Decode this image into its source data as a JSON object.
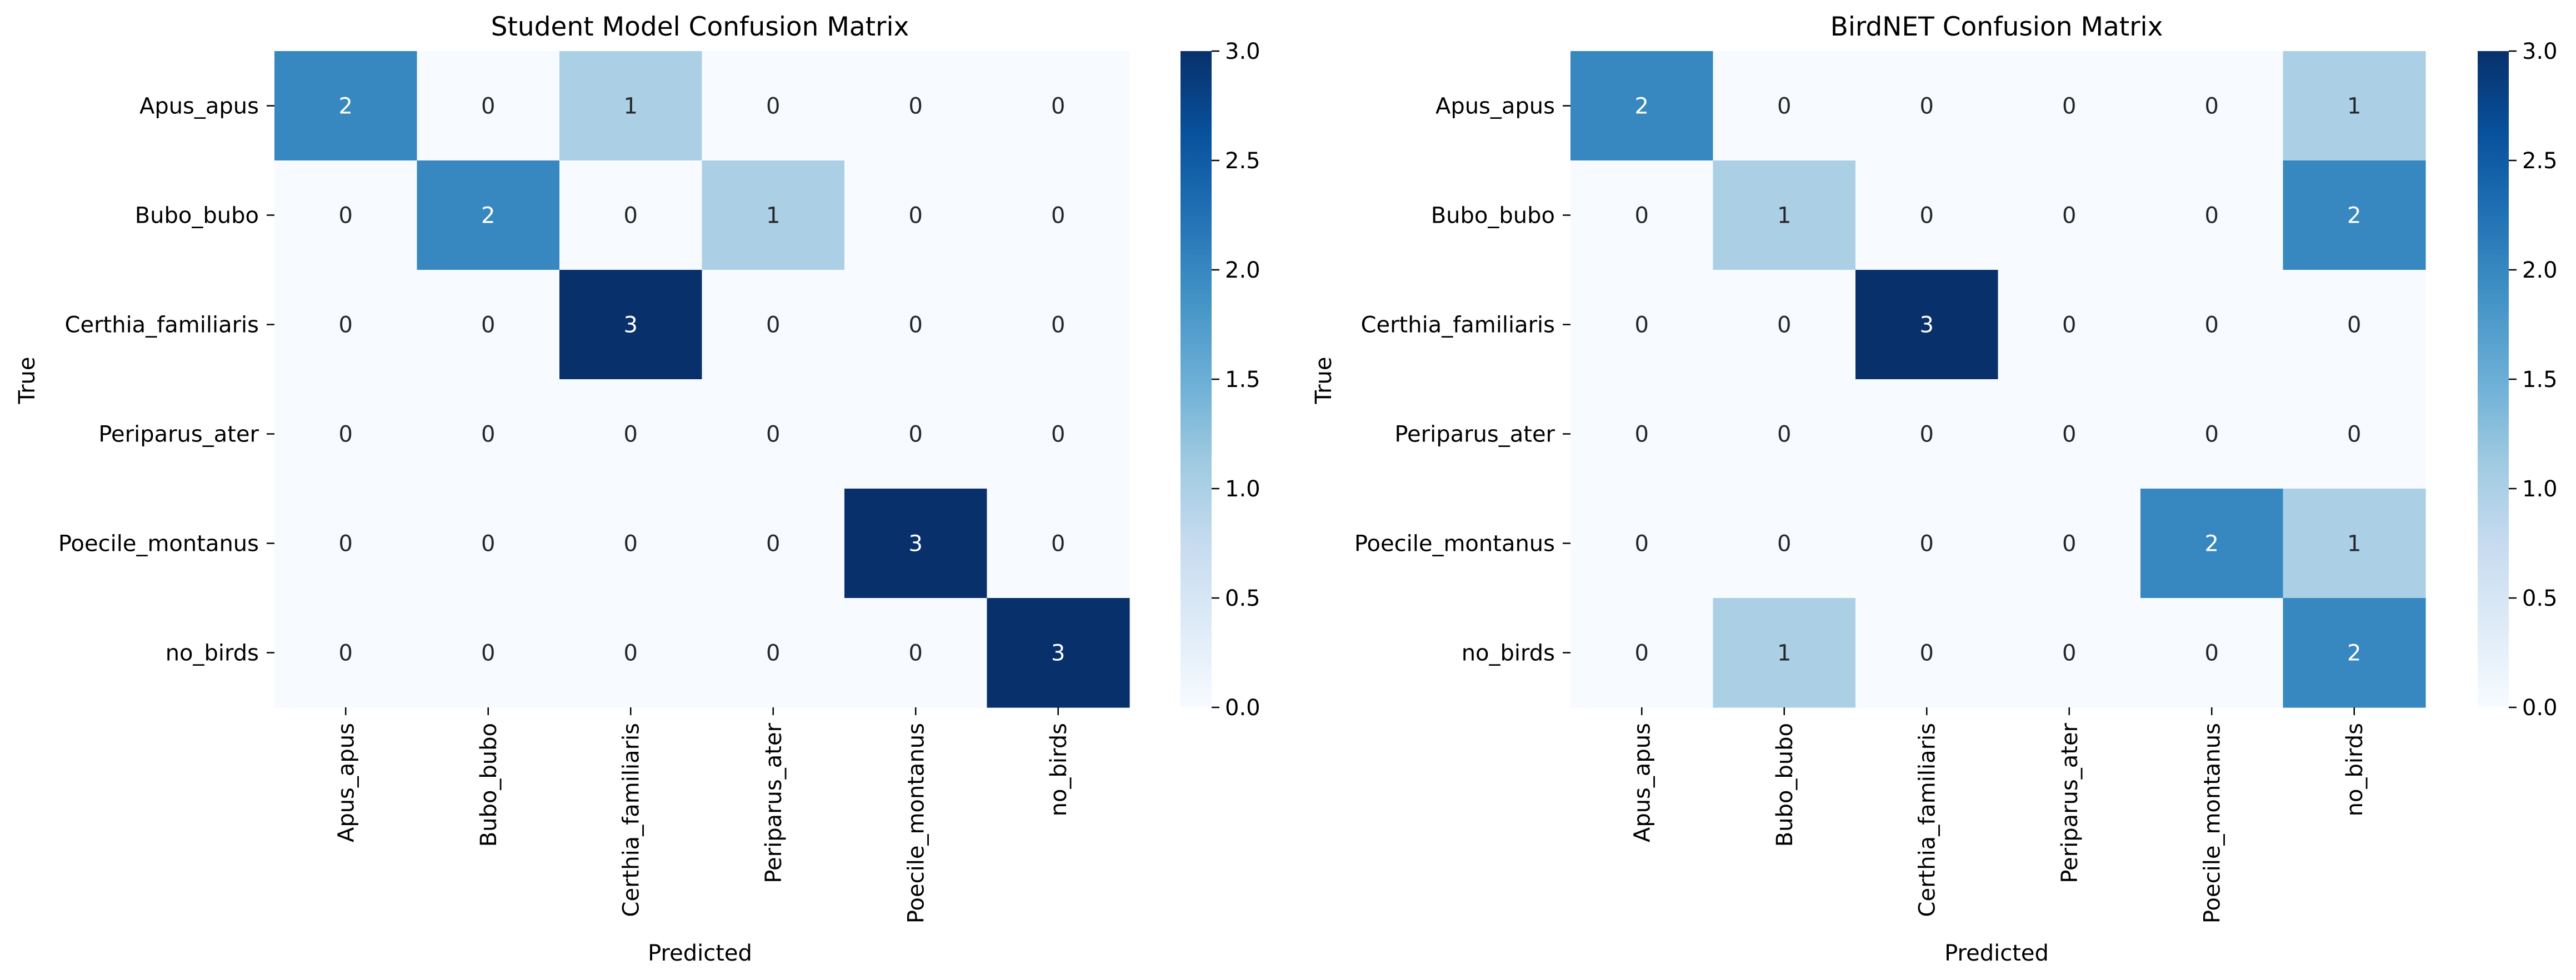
{
  "chart_data": [
    {
      "type": "heatmap",
      "title": "Student Model Confusion Matrix",
      "xlabel": "Predicted",
      "ylabel": "True",
      "x_categories": [
        "Apus_apus",
        "Bubo_bubo",
        "Certhia_familiaris",
        "Periparus_ater",
        "Poecile_montanus",
        "no_birds"
      ],
      "y_categories": [
        "Apus_apus",
        "Bubo_bubo",
        "Certhia_familiaris",
        "Periparus_ater",
        "Poecile_montanus",
        "no_birds"
      ],
      "values": [
        [
          2,
          0,
          1,
          0,
          0,
          0
        ],
        [
          0,
          2,
          0,
          1,
          0,
          0
        ],
        [
          0,
          0,
          3,
          0,
          0,
          0
        ],
        [
          0,
          0,
          0,
          0,
          0,
          0
        ],
        [
          0,
          0,
          0,
          0,
          3,
          0
        ],
        [
          0,
          0,
          0,
          0,
          0,
          3
        ]
      ],
      "colorbar": {
        "range": [
          0,
          3
        ],
        "ticks": [
          "0.0",
          "0.5",
          "1.0",
          "1.5",
          "2.0",
          "2.5",
          "3.0"
        ],
        "colormap": "Blues"
      }
    },
    {
      "type": "heatmap",
      "title": "BirdNET Confusion Matrix",
      "xlabel": "Predicted",
      "ylabel": "True",
      "x_categories": [
        "Apus_apus",
        "Bubo_bubo",
        "Certhia_familiaris",
        "Periparus_ater",
        "Poecile_montanus",
        "no_birds"
      ],
      "y_categories": [
        "Apus_apus",
        "Bubo_bubo",
        "Certhia_familiaris",
        "Periparus_ater",
        "Poecile_montanus",
        "no_birds"
      ],
      "values": [
        [
          2,
          0,
          0,
          0,
          0,
          1
        ],
        [
          0,
          1,
          0,
          0,
          0,
          2
        ],
        [
          0,
          0,
          3,
          0,
          0,
          0
        ],
        [
          0,
          0,
          0,
          0,
          0,
          0
        ],
        [
          0,
          0,
          0,
          0,
          2,
          1
        ],
        [
          0,
          1,
          0,
          0,
          0,
          2
        ]
      ],
      "colorbar": {
        "range": [
          0,
          3
        ],
        "ticks": [
          "0.0",
          "0.5",
          "1.0",
          "1.5",
          "2.0",
          "2.5",
          "3.0"
        ],
        "colormap": "Blues"
      }
    }
  ]
}
